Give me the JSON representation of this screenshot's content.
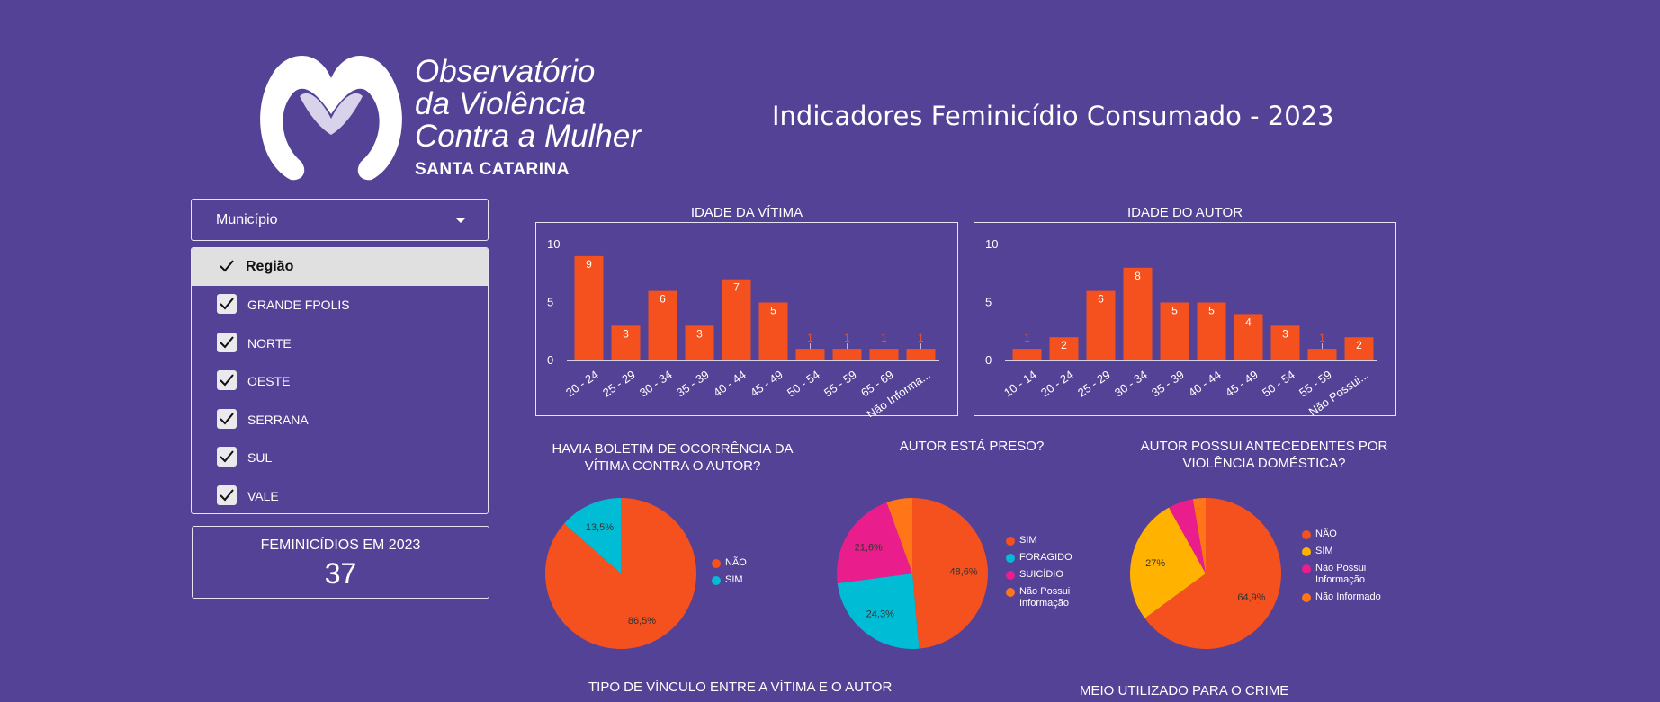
{
  "logo": {
    "line1": "Observatório",
    "line2": "da Violência",
    "line3": "Contra a Mulher",
    "line4": "SANTA CATARINA"
  },
  "dashboard_title": "Indicadores Feminicídio Consumado - 2023",
  "filter": {
    "municipio_label": "Município",
    "regiao_label": "Região",
    "regions": [
      "GRANDE FPOLIS",
      "NORTE",
      "OESTE",
      "SERRANA",
      "SUL",
      "VALE"
    ]
  },
  "scorecard": {
    "label": "FEMINICÍDIOS EM 2023",
    "value": "37"
  },
  "colors": {
    "background": "#534296",
    "orange_red": "#f4511e",
    "cyan": "#00bcd4",
    "magenta": "#e91e8c",
    "amber": "#ffb300",
    "orange": "#ff7518"
  },
  "bottom_titles": {
    "vinculo": "TIPO DE VÍNCULO ENTRE A VÍTIMA E O AUTOR",
    "meio": "MEIO UTILIZADO PARA O CRIME"
  },
  "chart_data": [
    {
      "type": "bar",
      "title": "IDADE DA VÍTIMA",
      "categories": [
        "20 - 24",
        "25 - 29",
        "30 - 34",
        "35 - 39",
        "40 - 44",
        "45 - 49",
        "50 - 54",
        "55 - 59",
        "65 - 69",
        "Não Informa..."
      ],
      "values": [
        9,
        3,
        6,
        3,
        7,
        5,
        1,
        1,
        1,
        1
      ],
      "yticks": [
        "0",
        "5",
        "10"
      ],
      "ylim": [
        0,
        10
      ],
      "color": "#f4511e"
    },
    {
      "type": "bar",
      "title": "IDADE DO AUTOR",
      "categories": [
        "10 - 14",
        "20 - 24",
        "25 - 29",
        "30 - 34",
        "35 - 39",
        "40 - 44",
        "45 - 49",
        "50 - 54",
        "55 - 59",
        "Não Possui..."
      ],
      "values": [
        1,
        2,
        6,
        8,
        5,
        5,
        4,
        3,
        1,
        2
      ],
      "yticks": [
        "0",
        "5",
        "10"
      ],
      "ylim": [
        0,
        10
      ],
      "color": "#f4511e"
    },
    {
      "type": "pie",
      "title": "HAVIA BOLETIM DE OCORRÊNCIA DA VÍTIMA CONTRA O AUTOR?",
      "slices": [
        {
          "label": "NÃO",
          "value": 86.5,
          "display": "86,5%",
          "color": "#f4511e"
        },
        {
          "label": "SIM",
          "value": 13.5,
          "display": "13,5%",
          "color": "#00bcd4"
        }
      ]
    },
    {
      "type": "pie",
      "title": "AUTOR ESTÁ PRESO?",
      "slices": [
        {
          "label": "SIM",
          "value": 48.6,
          "display": "48,6%",
          "color": "#f4511e"
        },
        {
          "label": "FORAGIDO",
          "value": 24.3,
          "display": "24,3%",
          "color": "#00bcd4"
        },
        {
          "label": "SUICÍDIO",
          "value": 21.6,
          "display": "21,6%",
          "color": "#e91e8c"
        },
        {
          "label": "Não Possui Informação",
          "value": 5.5,
          "display": "",
          "color": "#ff7518"
        }
      ]
    },
    {
      "type": "pie",
      "title": "AUTOR POSSUI ANTECEDENTES POR VIOLÊNCIA DOMÉSTICA?",
      "slices": [
        {
          "label": "NÃO",
          "value": 64.9,
          "display": "64,9%",
          "color": "#f4511e"
        },
        {
          "label": "SIM",
          "value": 27.0,
          "display": "27%",
          "color": "#ffb300"
        },
        {
          "label": "Não Possui Informação",
          "value": 5.4,
          "display": "",
          "color": "#e91e8c"
        },
        {
          "label": "Não Informado",
          "value": 2.7,
          "display": "",
          "color": "#ff7518"
        }
      ]
    }
  ]
}
